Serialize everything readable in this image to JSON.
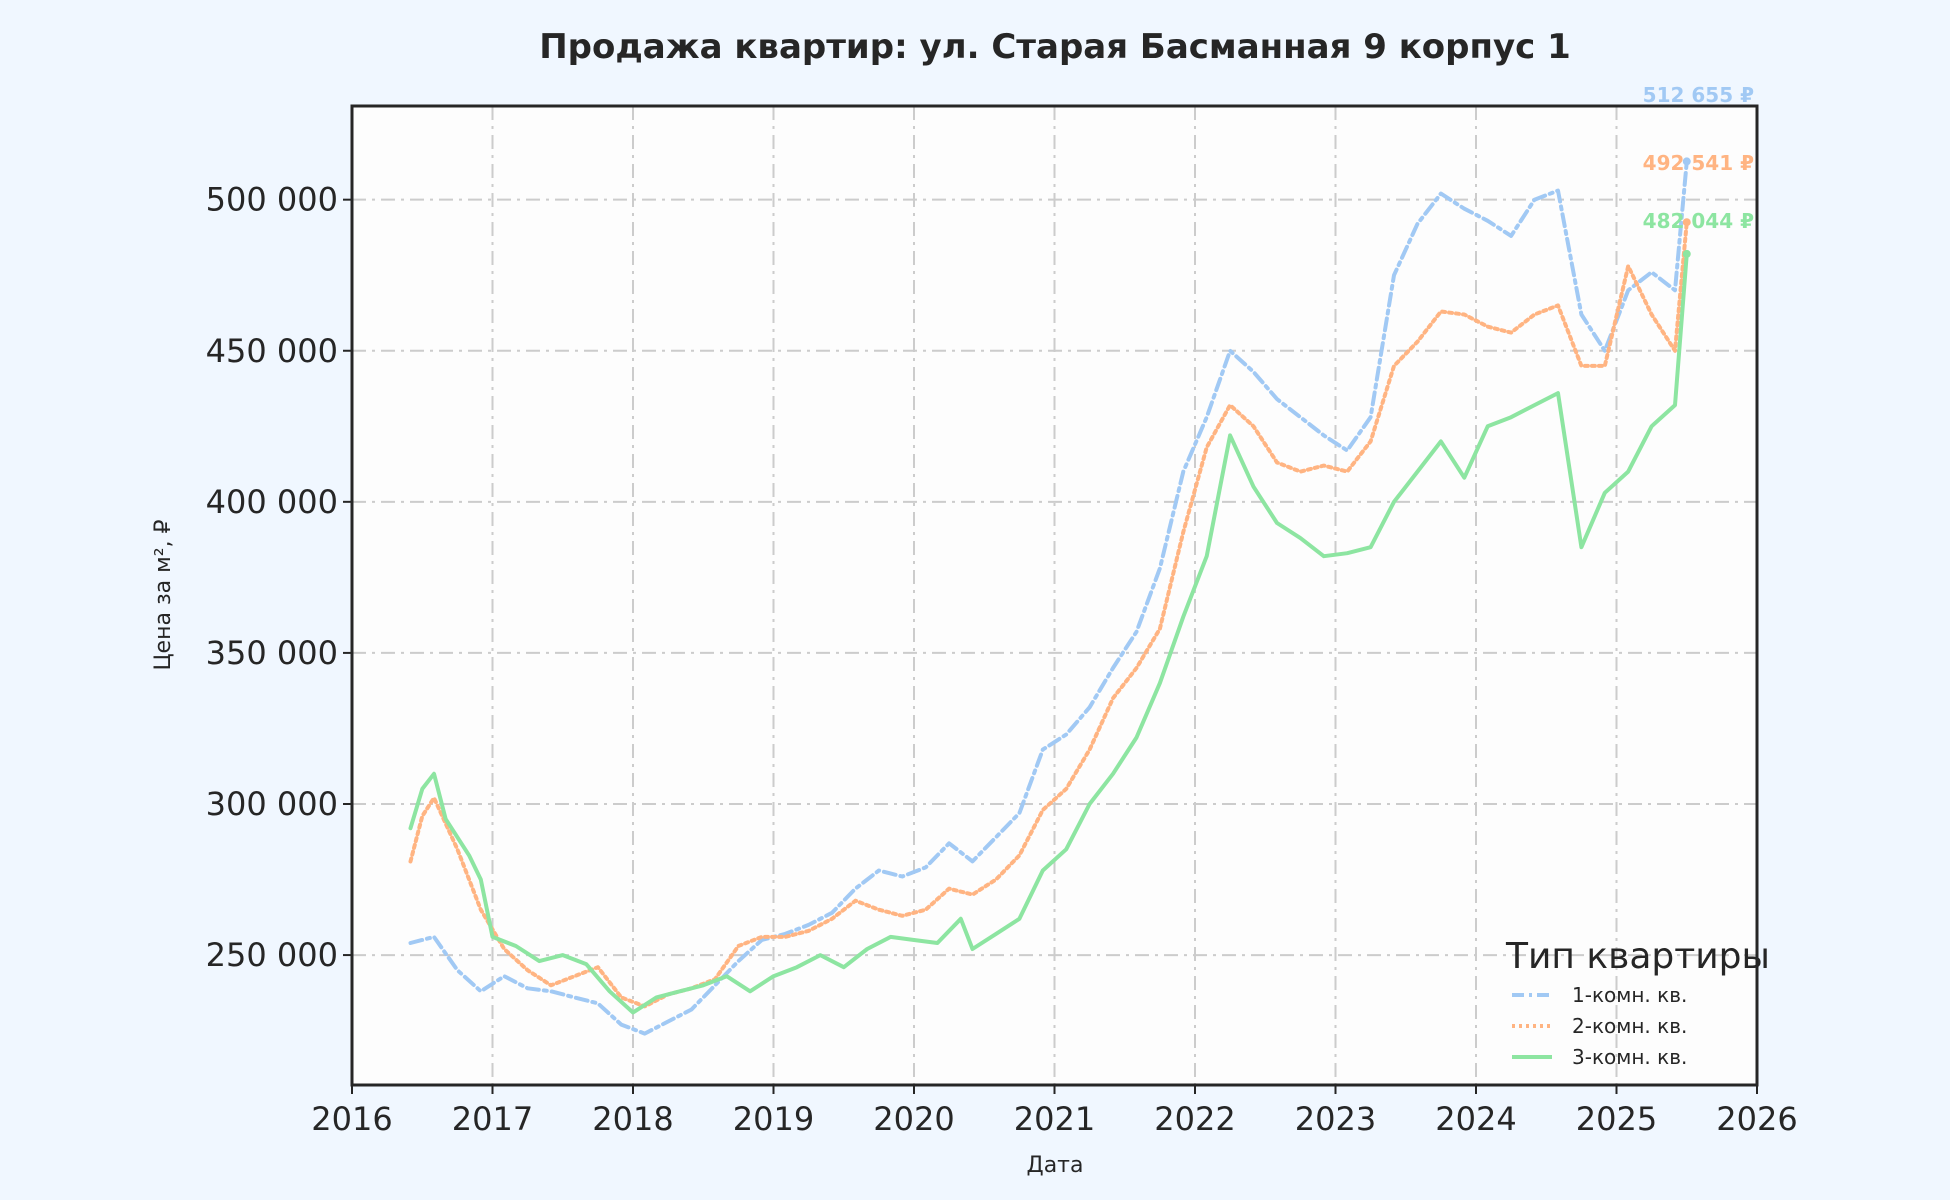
{
  "chart_data": {
    "type": "line",
    "title": "Продажа квартир: ул. Старая Басманная 9 корпус 1",
    "xlabel": "Дата",
    "ylabel": "Цена за м², ₽",
    "x_ticks": [
      "2016",
      "2017",
      "2018",
      "2019",
      "2020",
      "2021",
      "2022",
      "2023",
      "2024",
      "2025",
      "2026"
    ],
    "y_ticks": [
      "250 000",
      "300 000",
      "350 000",
      "400 000",
      "450 000",
      "500 000"
    ],
    "xlim": [
      "2016-01-01",
      "2026-01-01"
    ],
    "ylim": [
      207000,
      531000
    ],
    "grid": true,
    "legend": {
      "title": "Тип квартиры",
      "placement": "lower-right"
    },
    "series": [
      {
        "name": "1-комн. кв.",
        "color": "#a1c9f4",
        "dash": "dash-dot",
        "end_label": "512 655 ₽",
        "points": [
          [
            "2016-06",
            254000
          ],
          [
            "2016-08",
            256000
          ],
          [
            "2016-10",
            245000
          ],
          [
            "2016-12",
            238000
          ],
          [
            "2017-02",
            243000
          ],
          [
            "2017-04",
            239000
          ],
          [
            "2017-06",
            238000
          ],
          [
            "2017-08",
            236000
          ],
          [
            "2017-10",
            234000
          ],
          [
            "2017-12",
            227000
          ],
          [
            "2018-02",
            224000
          ],
          [
            "2018-04",
            228000
          ],
          [
            "2018-06",
            232000
          ],
          [
            "2018-08",
            240000
          ],
          [
            "2018-10",
            248000
          ],
          [
            "2018-12",
            255000
          ],
          [
            "2019-02",
            257000
          ],
          [
            "2019-04",
            260000
          ],
          [
            "2019-06",
            264000
          ],
          [
            "2019-08",
            272000
          ],
          [
            "2019-10",
            278000
          ],
          [
            "2019-12",
            276000
          ],
          [
            "2020-02",
            279000
          ],
          [
            "2020-04",
            287000
          ],
          [
            "2020-06",
            281000
          ],
          [
            "2020-08",
            289000
          ],
          [
            "2020-10",
            297000
          ],
          [
            "2020-12",
            318000
          ],
          [
            "2021-02",
            323000
          ],
          [
            "2021-04",
            332000
          ],
          [
            "2021-06",
            345000
          ],
          [
            "2021-08",
            357000
          ],
          [
            "2021-10",
            378000
          ],
          [
            "2021-12",
            410000
          ],
          [
            "2022-02",
            428000
          ],
          [
            "2022-04",
            450000
          ],
          [
            "2022-06",
            443000
          ],
          [
            "2022-08",
            434000
          ],
          [
            "2022-10",
            428000
          ],
          [
            "2022-12",
            422000
          ],
          [
            "2023-02",
            417000
          ],
          [
            "2023-04",
            428000
          ],
          [
            "2023-06",
            475000
          ],
          [
            "2023-08",
            492000
          ],
          [
            "2023-10",
            502000
          ],
          [
            "2023-12",
            497000
          ],
          [
            "2024-02",
            493000
          ],
          [
            "2024-04",
            488000
          ],
          [
            "2024-06",
            500000
          ],
          [
            "2024-08",
            503000
          ],
          [
            "2024-10",
            462000
          ],
          [
            "2024-12",
            450000
          ],
          [
            "2025-02",
            470000
          ],
          [
            "2025-04",
            476000
          ],
          [
            "2025-06",
            470000
          ],
          [
            "2025-07",
            512655
          ]
        ]
      },
      {
        "name": "2-комн. кв.",
        "color": "#ffb482",
        "dash": "dotted",
        "end_label": "492 541 ₽",
        "points": [
          [
            "2016-06",
            281000
          ],
          [
            "2016-07",
            296000
          ],
          [
            "2016-08",
            302000
          ],
          [
            "2016-10",
            285000
          ],
          [
            "2016-12",
            265000
          ],
          [
            "2017-02",
            252000
          ],
          [
            "2017-04",
            245000
          ],
          [
            "2017-06",
            240000
          ],
          [
            "2017-08",
            243000
          ],
          [
            "2017-10",
            246000
          ],
          [
            "2017-12",
            236000
          ],
          [
            "2018-02",
            233000
          ],
          [
            "2018-04",
            237000
          ],
          [
            "2018-06",
            239000
          ],
          [
            "2018-08",
            242000
          ],
          [
            "2018-10",
            253000
          ],
          [
            "2018-12",
            256000
          ],
          [
            "2019-02",
            256000
          ],
          [
            "2019-04",
            258000
          ],
          [
            "2019-06",
            262000
          ],
          [
            "2019-08",
            268000
          ],
          [
            "2019-10",
            265000
          ],
          [
            "2019-12",
            263000
          ],
          [
            "2020-02",
            265000
          ],
          [
            "2020-04",
            272000
          ],
          [
            "2020-06",
            270000
          ],
          [
            "2020-08",
            275000
          ],
          [
            "2020-10",
            283000
          ],
          [
            "2020-12",
            298000
          ],
          [
            "2021-02",
            305000
          ],
          [
            "2021-04",
            318000
          ],
          [
            "2021-06",
            335000
          ],
          [
            "2021-08",
            345000
          ],
          [
            "2021-10",
            358000
          ],
          [
            "2021-12",
            390000
          ],
          [
            "2022-02",
            418000
          ],
          [
            "2022-04",
            432000
          ],
          [
            "2022-06",
            425000
          ],
          [
            "2022-08",
            413000
          ],
          [
            "2022-10",
            410000
          ],
          [
            "2022-12",
            412000
          ],
          [
            "2023-02",
            410000
          ],
          [
            "2023-04",
            420000
          ],
          [
            "2023-06",
            445000
          ],
          [
            "2023-08",
            453000
          ],
          [
            "2023-10",
            463000
          ],
          [
            "2023-12",
            462000
          ],
          [
            "2024-02",
            458000
          ],
          [
            "2024-04",
            456000
          ],
          [
            "2024-06",
            462000
          ],
          [
            "2024-08",
            465000
          ],
          [
            "2024-10",
            445000
          ],
          [
            "2024-12",
            445000
          ],
          [
            "2025-02",
            478000
          ],
          [
            "2025-04",
            462000
          ],
          [
            "2025-06",
            450000
          ],
          [
            "2025-07",
            492541
          ]
        ]
      },
      {
        "name": "3-комн. кв.",
        "color": "#8de5a1",
        "dash": "solid",
        "end_label": "482 044 ₽",
        "points": [
          [
            "2016-06",
            292000
          ],
          [
            "2016-07",
            305000
          ],
          [
            "2016-08",
            310000
          ],
          [
            "2016-09",
            295000
          ],
          [
            "2016-11",
            283000
          ],
          [
            "2016-12",
            275000
          ],
          [
            "2017-01",
            256000
          ],
          [
            "2017-03",
            253000
          ],
          [
            "2017-05",
            248000
          ],
          [
            "2017-07",
            250000
          ],
          [
            "2017-09",
            247000
          ],
          [
            "2017-11",
            238000
          ],
          [
            "2018-01",
            231000
          ],
          [
            "2018-03",
            236000
          ],
          [
            "2018-05",
            238000
          ],
          [
            "2018-07",
            240000
          ],
          [
            "2018-09",
            243000
          ],
          [
            "2018-11",
            238000
          ],
          [
            "2019-01",
            243000
          ],
          [
            "2019-03",
            246000
          ],
          [
            "2019-05",
            250000
          ],
          [
            "2019-07",
            246000
          ],
          [
            "2019-09",
            252000
          ],
          [
            "2019-11",
            256000
          ],
          [
            "2020-01",
            255000
          ],
          [
            "2020-03",
            254000
          ],
          [
            "2020-05",
            262000
          ],
          [
            "2020-06",
            252000
          ],
          [
            "2020-08",
            257000
          ],
          [
            "2020-10",
            262000
          ],
          [
            "2020-12",
            278000
          ],
          [
            "2021-02",
            285000
          ],
          [
            "2021-04",
            300000
          ],
          [
            "2021-06",
            310000
          ],
          [
            "2021-08",
            322000
          ],
          [
            "2021-10",
            340000
          ],
          [
            "2021-12",
            362000
          ],
          [
            "2022-02",
            382000
          ],
          [
            "2022-04",
            422000
          ],
          [
            "2022-06",
            405000
          ],
          [
            "2022-08",
            393000
          ],
          [
            "2022-10",
            388000
          ],
          [
            "2022-12",
            382000
          ],
          [
            "2023-02",
            383000
          ],
          [
            "2023-04",
            385000
          ],
          [
            "2023-06",
            400000
          ],
          [
            "2023-08",
            410000
          ],
          [
            "2023-10",
            420000
          ],
          [
            "2023-12",
            408000
          ],
          [
            "2024-02",
            425000
          ],
          [
            "2024-04",
            428000
          ],
          [
            "2024-06",
            432000
          ],
          [
            "2024-08",
            436000
          ],
          [
            "2024-10",
            385000
          ],
          [
            "2024-12",
            403000
          ],
          [
            "2025-02",
            410000
          ],
          [
            "2025-04",
            425000
          ],
          [
            "2025-06",
            432000
          ],
          [
            "2025-07",
            482044
          ]
        ]
      }
    ]
  }
}
